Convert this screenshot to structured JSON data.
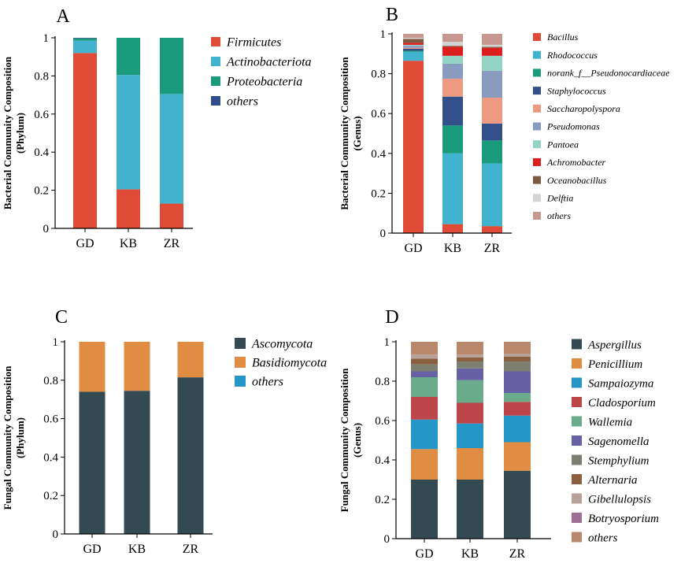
{
  "chart_data": [
    {
      "panel": "A",
      "type": "bar",
      "stacked": true,
      "title": "",
      "xlabel": "",
      "ylabel": [
        "Bacterial Community Composition",
        "(Phylum)"
      ],
      "ylim": [
        0,
        1
      ],
      "yticks": [
        "0",
        "0.2",
        "0.4",
        "0.6",
        "0.8",
        "1"
      ],
      "categories": [
        "GD",
        "KB",
        "ZR"
      ],
      "legend_position": "right",
      "series": [
        {
          "name": "Firmicutes",
          "color": "#e04b38",
          "values": [
            0.92,
            0.205,
            0.13
          ]
        },
        {
          "name": "Actinobacteriota",
          "color": "#41b3cf",
          "values": [
            0.065,
            0.6,
            0.575
          ]
        },
        {
          "name": "Proteobacteria",
          "color": "#1a9b7c",
          "values": [
            0.012,
            0.195,
            0.295
          ]
        },
        {
          "name": "others",
          "color": "#2f4d8a",
          "values": [
            0.003,
            0.0,
            0.0
          ]
        }
      ]
    },
    {
      "panel": "B",
      "type": "bar",
      "stacked": true,
      "title": "",
      "xlabel": "",
      "ylabel": [
        "Bacterial Community Composition",
        "(Genus)"
      ],
      "ylim": [
        0,
        1
      ],
      "yticks": [
        "0",
        "0.2",
        "0.4",
        "0.6",
        "0.8",
        "1"
      ],
      "categories": [
        "GD",
        "KB",
        "ZR"
      ],
      "legend_position": "right",
      "series": [
        {
          "name": "Bacillus",
          "color": "#e04b38",
          "values": [
            0.865,
            0.045,
            0.035
          ]
        },
        {
          "name": "Rhodococcus",
          "color": "#41b3cf",
          "values": [
            0.045,
            0.355,
            0.315
          ]
        },
        {
          "name": "norank_f__Pseudonocardiaceae",
          "color": "#1a9b7c",
          "values": [
            0.005,
            0.14,
            0.115
          ]
        },
        {
          "name": "Staphylococcus",
          "color": "#34508a",
          "values": [
            0.01,
            0.145,
            0.085
          ]
        },
        {
          "name": "Saccharopolyspora",
          "color": "#ee9a82",
          "values": [
            0.005,
            0.09,
            0.13
          ]
        },
        {
          "name": "Pseudomonas",
          "color": "#8a9bc0",
          "values": [
            0.01,
            0.075,
            0.135
          ]
        },
        {
          "name": "Pantoea",
          "color": "#93d4c4",
          "values": [
            0.005,
            0.04,
            0.075
          ]
        },
        {
          "name": "Achromobacter",
          "color": "#dd1e1e",
          "values": [
            0.01,
            0.045,
            0.04
          ]
        },
        {
          "name": "Oceanobacillus",
          "color": "#7d5a42",
          "values": [
            0.02,
            0.005,
            0.005
          ]
        },
        {
          "name": "Delftia",
          "color": "#d4d4d4",
          "values": [
            0.005,
            0.02,
            0.01
          ]
        },
        {
          "name": "others",
          "color": "#c6988f",
          "values": [
            0.02,
            0.04,
            0.055
          ]
        }
      ]
    },
    {
      "panel": "C",
      "type": "bar",
      "stacked": true,
      "title": "",
      "xlabel": "",
      "ylabel": [
        "Fungal Community Composition",
        "(Phylum)"
      ],
      "ylim": [
        0,
        1
      ],
      "yticks": [
        "0",
        "0.2",
        "0.4",
        "0.6",
        "0.8",
        "1"
      ],
      "categories": [
        "GD",
        "KB",
        "ZR"
      ],
      "legend_position": "right",
      "series": [
        {
          "name": "Ascomycota",
          "color": "#334a53",
          "values": [
            0.74,
            0.745,
            0.815
          ]
        },
        {
          "name": "Basidiomycota",
          "color": "#e08c42",
          "values": [
            0.26,
            0.255,
            0.185
          ]
        },
        {
          "name": "others",
          "color": "#2596c8",
          "values": [
            0.0,
            0.0,
            0.0
          ]
        }
      ]
    },
    {
      "panel": "D",
      "type": "bar",
      "stacked": true,
      "title": "",
      "xlabel": "",
      "ylabel": [
        "Fungal Community Composition",
        "(Genus)"
      ],
      "ylim": [
        0,
        1
      ],
      "yticks": [
        "0",
        "0.2",
        "0.4",
        "0.6",
        "0.8",
        "1"
      ],
      "categories": [
        "GD",
        "KB",
        "ZR"
      ],
      "legend_position": "right",
      "series": [
        {
          "name": "Aspergillus",
          "color": "#334a53",
          "values": [
            0.3,
            0.3,
            0.345
          ]
        },
        {
          "name": "Penicillium",
          "color": "#e08c42",
          "values": [
            0.155,
            0.16,
            0.145
          ]
        },
        {
          "name": "Sampaiozyma",
          "color": "#2596c8",
          "values": [
            0.15,
            0.125,
            0.135
          ]
        },
        {
          "name": "Cladosporium",
          "color": "#bb4548",
          "values": [
            0.115,
            0.105,
            0.07
          ]
        },
        {
          "name": "Wallemia",
          "color": "#6aab8c",
          "values": [
            0.1,
            0.115,
            0.045
          ]
        },
        {
          "name": "Sagenomella",
          "color": "#6860a4",
          "values": [
            0.03,
            0.06,
            0.11
          ]
        },
        {
          "name": "Stemphylium",
          "color": "#7d8070",
          "values": [
            0.035,
            0.035,
            0.05
          ]
        },
        {
          "name": "Alternaria",
          "color": "#8a6040",
          "values": [
            0.03,
            0.02,
            0.025
          ]
        },
        {
          "name": "Gibellulopsis",
          "color": "#b8a198",
          "values": [
            0.02,
            0.015,
            0.015
          ]
        },
        {
          "name": "Botryosporium",
          "color": "#9e6f93",
          "values": [
            0.0,
            0.0,
            0.0
          ]
        },
        {
          "name": "others",
          "color": "#b8876c",
          "values": [
            0.065,
            0.065,
            0.06
          ]
        }
      ]
    }
  ]
}
